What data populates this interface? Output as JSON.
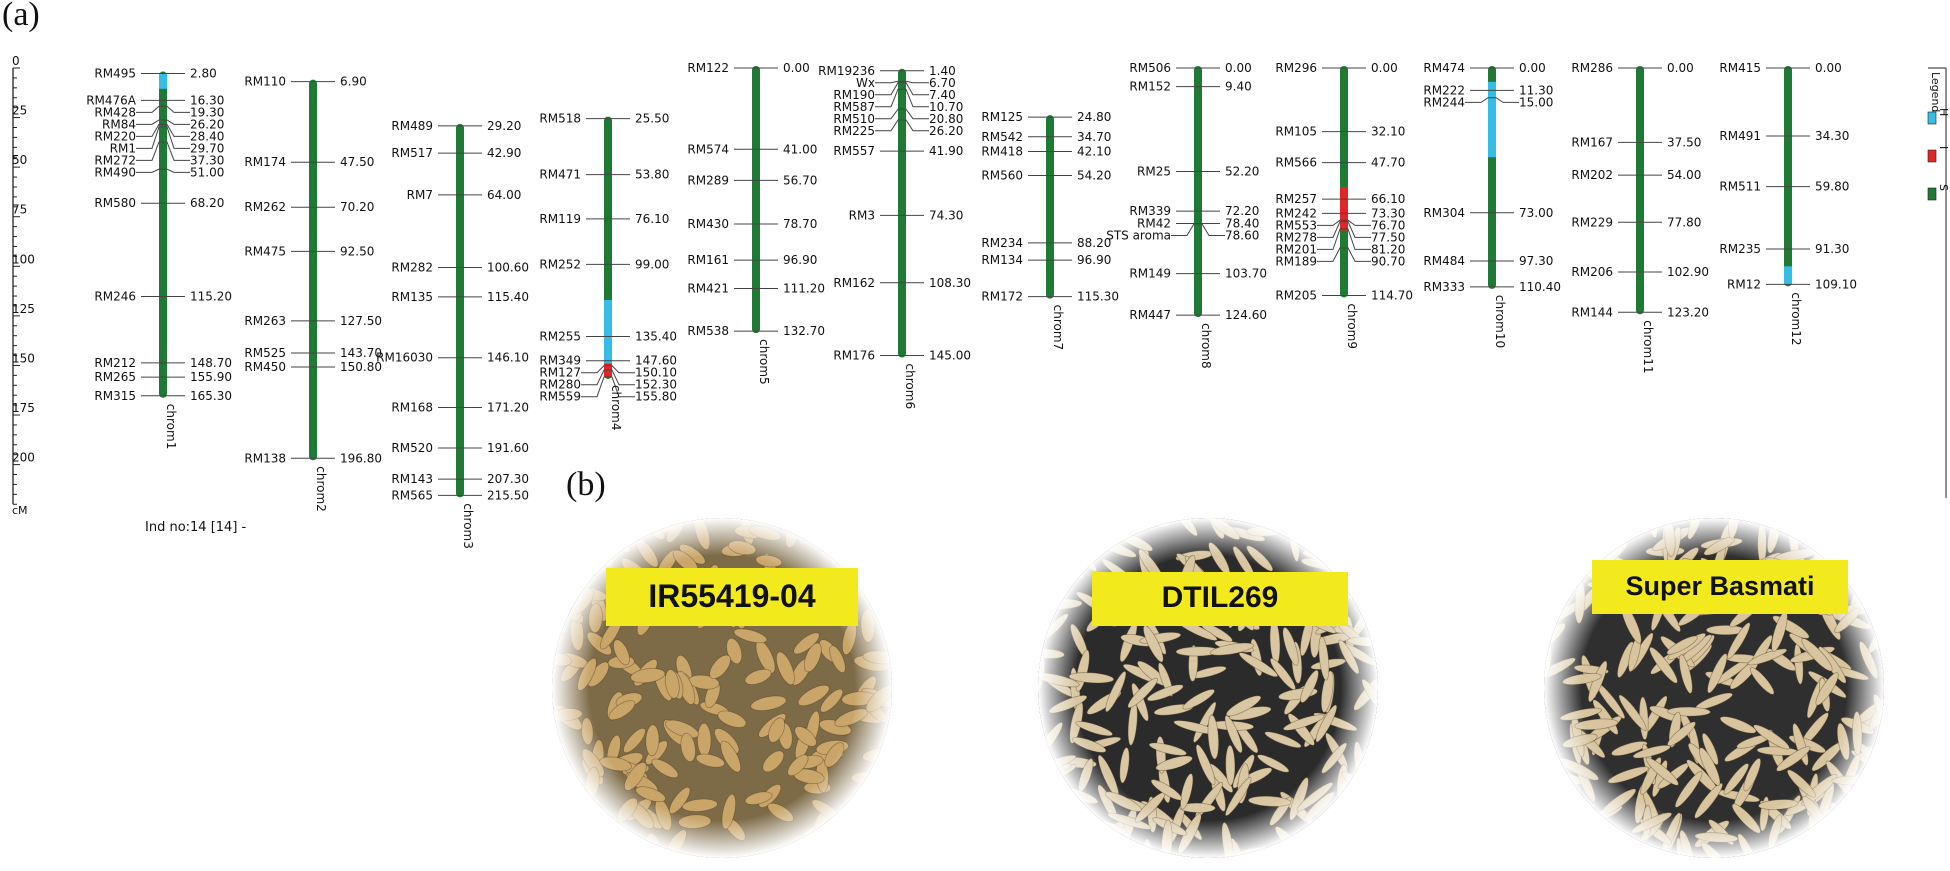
{
  "panels": {
    "a": "(a)",
    "b": "(b)"
  },
  "axis": {
    "unit": "cM",
    "max": 220,
    "ticks": [
      {
        "value": 0,
        "label": "0"
      },
      {
        "value": 25,
        "label": "25"
      },
      {
        "value": 50,
        "label": "50"
      },
      {
        "value": 75,
        "label": "75"
      },
      {
        "value": 100,
        "label": "100"
      },
      {
        "value": 125,
        "label": "125"
      },
      {
        "value": 150,
        "label": "150"
      },
      {
        "value": 175,
        "label": "175"
      },
      {
        "value": 200,
        "label": "200"
      }
    ]
  },
  "individual_label": "Ind no:14 [14] -",
  "legend": {
    "title": "Legend",
    "items": [
      {
        "key": "H",
        "color": "#35bde6"
      },
      {
        "key": "I",
        "color": "#e0262b"
      },
      {
        "key": "S",
        "color": "#1f7a35"
      }
    ]
  },
  "colors": {
    "S": "#1f7a35",
    "H": "#35bde6",
    "I": "#e0262b"
  },
  "chromosomes": [
    {
      "name": "chrom1",
      "segments": [
        {
          "from": 2.8,
          "to": 10.5,
          "type": "H"
        }
      ],
      "markers": [
        {
          "name": "RM495",
          "pos": 2.8,
          "label": "2.80"
        },
        {
          "name": "RM476A",
          "pos": 16.3,
          "label": "16.30"
        },
        {
          "name": "RM428",
          "pos": 19.3,
          "label": "19.30"
        },
        {
          "name": "RM84",
          "pos": 26.2,
          "label": "26.20"
        },
        {
          "name": "RM220",
          "pos": 28.4,
          "label": "28.40"
        },
        {
          "name": "RM1",
          "pos": 29.7,
          "label": "29.70"
        },
        {
          "name": "RM272",
          "pos": 37.3,
          "label": "37.30"
        },
        {
          "name": "RM490",
          "pos": 51.0,
          "label": "51.00"
        },
        {
          "name": "RM580",
          "pos": 68.2,
          "label": "68.20"
        },
        {
          "name": "RM246",
          "pos": 115.2,
          "label": "115.20"
        },
        {
          "name": "RM212",
          "pos": 148.7,
          "label": "148.70"
        },
        {
          "name": "RM265",
          "pos": 155.9,
          "label": "155.90"
        },
        {
          "name": "RM315",
          "pos": 165.3,
          "label": "165.30"
        }
      ]
    },
    {
      "name": "chrom2",
      "segments": [],
      "markers": [
        {
          "name": "RM110",
          "pos": 6.9,
          "label": "6.90"
        },
        {
          "name": "RM174",
          "pos": 47.5,
          "label": "47.50"
        },
        {
          "name": "RM262",
          "pos": 70.2,
          "label": "70.20"
        },
        {
          "name": "RM475",
          "pos": 92.5,
          "label": "92.50"
        },
        {
          "name": "RM263",
          "pos": 127.5,
          "label": "127.50"
        },
        {
          "name": "RM525",
          "pos": 143.7,
          "label": "143.70"
        },
        {
          "name": "RM450",
          "pos": 150.8,
          "label": "150.80"
        },
        {
          "name": "RM138",
          "pos": 196.8,
          "label": "196.80"
        }
      ]
    },
    {
      "name": "chrom3",
      "segments": [],
      "markers": [
        {
          "name": "RM489",
          "pos": 29.2,
          "label": "29.20"
        },
        {
          "name": "RM517",
          "pos": 42.9,
          "label": "42.90"
        },
        {
          "name": "RM7",
          "pos": 64.0,
          "label": "64.00"
        },
        {
          "name": "RM282",
          "pos": 100.6,
          "label": "100.60"
        },
        {
          "name": "RM135",
          "pos": 115.4,
          "label": "115.40"
        },
        {
          "name": "RM16030",
          "pos": 146.1,
          "label": "146.10"
        },
        {
          "name": "RM168",
          "pos": 171.2,
          "label": "171.20"
        },
        {
          "name": "RM520",
          "pos": 191.6,
          "label": "191.60"
        },
        {
          "name": "RM143",
          "pos": 207.3,
          "label": "207.30"
        },
        {
          "name": "RM565",
          "pos": 215.5,
          "label": "215.50"
        }
      ]
    },
    {
      "name": "chrom4",
      "segments": [
        {
          "from": 117.0,
          "to": 149.0,
          "type": "H"
        },
        {
          "from": 149.0,
          "to": 156.0,
          "type": "I"
        }
      ],
      "markers": [
        {
          "name": "RM518",
          "pos": 25.5,
          "label": "25.50"
        },
        {
          "name": "RM471",
          "pos": 53.8,
          "label": "53.80"
        },
        {
          "name": "RM119",
          "pos": 76.1,
          "label": "76.10"
        },
        {
          "name": "RM252",
          "pos": 99.0,
          "label": "99.00"
        },
        {
          "name": "RM255",
          "pos": 135.4,
          "label": "135.40"
        },
        {
          "name": "RM349",
          "pos": 147.6,
          "label": "147.60"
        },
        {
          "name": "RM127",
          "pos": 150.1,
          "label": "150.10"
        },
        {
          "name": "RM280",
          "pos": 152.3,
          "label": "152.30"
        },
        {
          "name": "RM559",
          "pos": 155.8,
          "label": "155.80"
        }
      ]
    },
    {
      "name": "chrom5",
      "segments": [],
      "markers": [
        {
          "name": "RM122",
          "pos": 0.0,
          "label": "0.00"
        },
        {
          "name": "RM574",
          "pos": 41.0,
          "label": "41.00"
        },
        {
          "name": "RM289",
          "pos": 56.7,
          "label": "56.70"
        },
        {
          "name": "RM430",
          "pos": 78.7,
          "label": "78.70"
        },
        {
          "name": "RM161",
          "pos": 96.9,
          "label": "96.90"
        },
        {
          "name": "RM421",
          "pos": 111.2,
          "label": "111.20"
        },
        {
          "name": "RM538",
          "pos": 132.7,
          "label": "132.70"
        }
      ]
    },
    {
      "name": "chrom6",
      "segments": [],
      "markers": [
        {
          "name": "RM19236",
          "pos": 1.4,
          "label": "1.40"
        },
        {
          "name": "Wx",
          "pos": 6.7,
          "label": "6.70"
        },
        {
          "name": "RM190",
          "pos": 7.4,
          "label": "7.40"
        },
        {
          "name": "RM587",
          "pos": 10.7,
          "label": "10.70"
        },
        {
          "name": "RM510",
          "pos": 20.8,
          "label": "20.80"
        },
        {
          "name": "RM225",
          "pos": 26.2,
          "label": "26.20"
        },
        {
          "name": "RM557",
          "pos": 41.9,
          "label": "41.90"
        },
        {
          "name": "RM3",
          "pos": 74.3,
          "label": "74.30"
        },
        {
          "name": "RM162",
          "pos": 108.3,
          "label": "108.30"
        },
        {
          "name": "RM176",
          "pos": 145.0,
          "label": "145.00"
        }
      ]
    },
    {
      "name": "chrom7",
      "segments": [],
      "markers": [
        {
          "name": "RM125",
          "pos": 24.8,
          "label": "24.80"
        },
        {
          "name": "RM542",
          "pos": 34.7,
          "label": "34.70"
        },
        {
          "name": "RM418",
          "pos": 42.1,
          "label": "42.10"
        },
        {
          "name": "RM560",
          "pos": 54.2,
          "label": "54.20"
        },
        {
          "name": "RM234",
          "pos": 88.2,
          "label": "88.20"
        },
        {
          "name": "RM134",
          "pos": 96.9,
          "label": "96.90"
        },
        {
          "name": "RM172",
          "pos": 115.3,
          "label": "115.30"
        }
      ]
    },
    {
      "name": "chrom8",
      "segments": [],
      "markers": [
        {
          "name": "RM506",
          "pos": 0.0,
          "label": "0.00"
        },
        {
          "name": "RM152",
          "pos": 9.4,
          "label": "9.40"
        },
        {
          "name": "RM25",
          "pos": 52.2,
          "label": "52.20"
        },
        {
          "name": "RM339",
          "pos": 72.2,
          "label": "72.20"
        },
        {
          "name": "RM42",
          "pos": 78.4,
          "label": "78.40"
        },
        {
          "name": "STS aroma",
          "pos": 78.6,
          "label": "78.60"
        },
        {
          "name": "RM149",
          "pos": 103.7,
          "label": "103.70"
        },
        {
          "name": "RM447",
          "pos": 124.6,
          "label": "124.60"
        }
      ]
    },
    {
      "name": "chrom9",
      "segments": [
        {
          "from": 60.0,
          "to": 82.0,
          "type": "I"
        }
      ],
      "markers": [
        {
          "name": "RM296",
          "pos": 0.0,
          "label": "0.00"
        },
        {
          "name": "RM105",
          "pos": 32.1,
          "label": "32.10"
        },
        {
          "name": "RM566",
          "pos": 47.7,
          "label": "47.70"
        },
        {
          "name": "RM257",
          "pos": 66.1,
          "label": "66.10"
        },
        {
          "name": "RM242",
          "pos": 73.3,
          "label": "73.30"
        },
        {
          "name": "RM553",
          "pos": 76.7,
          "label": "76.70"
        },
        {
          "name": "RM278",
          "pos": 77.5,
          "label": "77.50"
        },
        {
          "name": "RM201",
          "pos": 81.2,
          "label": "81.20"
        },
        {
          "name": "RM189",
          "pos": 90.7,
          "label": "90.70"
        },
        {
          "name": "RM205",
          "pos": 114.7,
          "label": "114.70"
        }
      ]
    },
    {
      "name": "chrom10",
      "segments": [
        {
          "from": 7.0,
          "to": 45.0,
          "type": "H"
        }
      ],
      "markers": [
        {
          "name": "RM474",
          "pos": 0.0,
          "label": "0.00"
        },
        {
          "name": "RM222",
          "pos": 11.3,
          "label": "11.30"
        },
        {
          "name": "RM244",
          "pos": 15.0,
          "label": "15.00"
        },
        {
          "name": "RM304",
          "pos": 73.0,
          "label": "73.00"
        },
        {
          "name": "RM484",
          "pos": 97.3,
          "label": "97.30"
        },
        {
          "name": "RM333",
          "pos": 110.4,
          "label": "110.40"
        }
      ]
    },
    {
      "name": "chrom11",
      "segments": [],
      "markers": [
        {
          "name": "RM286",
          "pos": 0.0,
          "label": "0.00"
        },
        {
          "name": "RM167",
          "pos": 37.5,
          "label": "37.50"
        },
        {
          "name": "RM202",
          "pos": 54.0,
          "label": "54.00"
        },
        {
          "name": "RM229",
          "pos": 77.8,
          "label": "77.80"
        },
        {
          "name": "RM206",
          "pos": 102.9,
          "label": "102.90"
        },
        {
          "name": "RM144",
          "pos": 123.2,
          "label": "123.20"
        }
      ]
    },
    {
      "name": "chrom12",
      "segments": [
        {
          "from": 100.0,
          "to": 109.1,
          "type": "H"
        }
      ],
      "markers": [
        {
          "name": "RM415",
          "pos": 0.0,
          "label": "0.00"
        },
        {
          "name": "RM491",
          "pos": 34.3,
          "label": "34.30"
        },
        {
          "name": "RM511",
          "pos": 59.8,
          "label": "59.80"
        },
        {
          "name": "RM235",
          "pos": 91.3,
          "label": "91.30"
        },
        {
          "name": "RM12",
          "pos": 109.1,
          "label": "109.10"
        }
      ]
    }
  ],
  "samples": [
    {
      "label": "IR55419-04",
      "grain_color": "#c9a56a",
      "bg_color": "#7d6a47"
    },
    {
      "label": "DTIL269",
      "grain_color": "#d9c7a4",
      "bg_color": "#2b2b2b"
    },
    {
      "label": "Super Basmati",
      "grain_color": "#d8c59f",
      "bg_color": "#2f2f2f"
    }
  ]
}
